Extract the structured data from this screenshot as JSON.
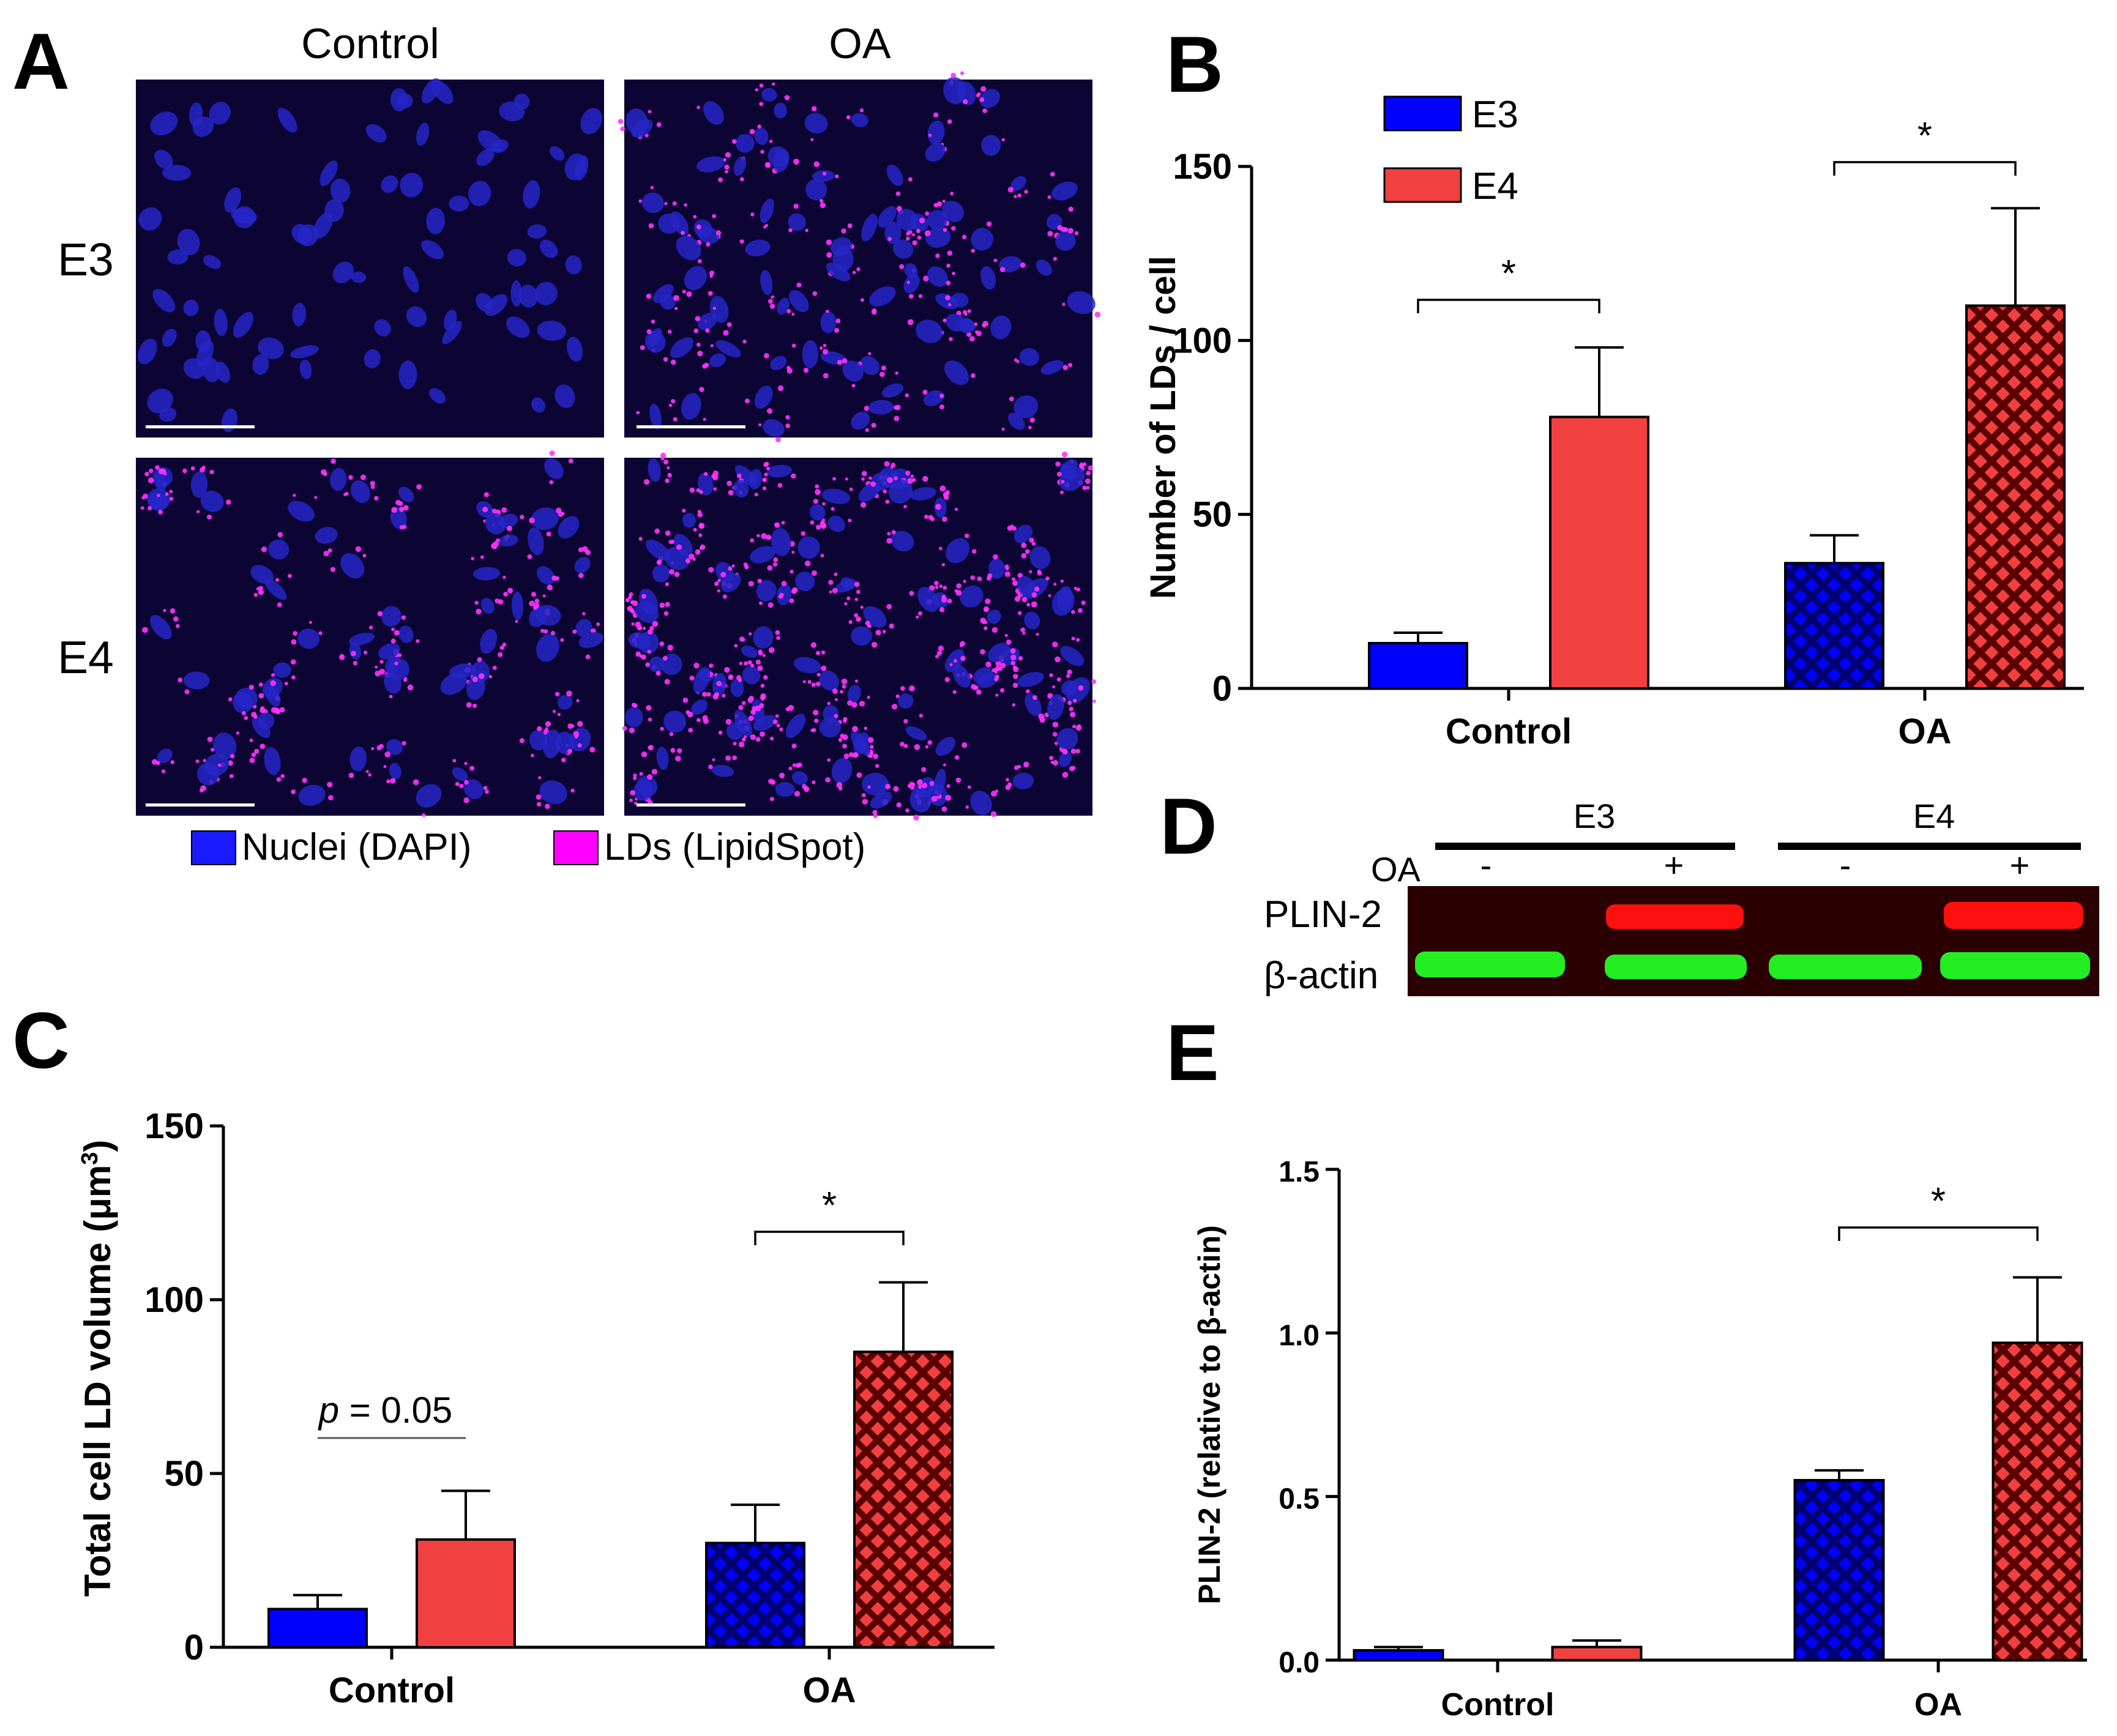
{
  "panel_letters": {
    "a": "A",
    "b": "B",
    "c": "C",
    "d": "D",
    "e": "E"
  },
  "panel_a": {
    "col_labels": [
      "Control",
      "OA"
    ],
    "row_labels": [
      "E3",
      "E4"
    ],
    "legend": [
      {
        "label": "Nuclei (DAPI)",
        "color": "#1a1aff"
      },
      {
        "label": "LDs (LipidSpot)",
        "color": "#ff00ff"
      }
    ]
  },
  "colors": {
    "e3": "#0000ff",
    "e4": "#f04040",
    "pattern_bg_e3": "#00006e",
    "pattern_bg_e4": "#5a0000"
  },
  "chart_data": [
    {
      "id": "B",
      "type": "bar",
      "categories": [
        "Control",
        "OA"
      ],
      "series": [
        {
          "name": "E3",
          "values": [
            13,
            36
          ],
          "errors": [
            3,
            8
          ]
        },
        {
          "name": "E4",
          "values": [
            78,
            110
          ],
          "errors": [
            20,
            28
          ]
        }
      ],
      "ylabel": "Number of LDs / cell",
      "ylim": [
        0,
        150
      ],
      "yticks": [
        0,
        50,
        100,
        150
      ],
      "legend": [
        "E3",
        "E4"
      ],
      "legend_position": "top-left",
      "annotations": [
        "*",
        "*"
      ]
    },
    {
      "id": "C",
      "type": "bar",
      "categories": [
        "Control",
        "OA"
      ],
      "series": [
        {
          "name": "E3",
          "values": [
            11,
            30
          ],
          "errors": [
            4,
            11
          ]
        },
        {
          "name": "E4",
          "values": [
            31,
            85
          ],
          "errors": [
            14,
            20
          ]
        }
      ],
      "ylabel_prefix": "Total cell LD volume (",
      "ylabel_unit": "μm",
      "ylabel_sup": "3",
      "ylabel_suffix": ")",
      "ylim": [
        0,
        150
      ],
      "yticks": [
        0,
        50,
        100,
        150
      ],
      "annotations": [
        {
          "prefix": "p",
          "text": " = 0.05"
        },
        "*"
      ]
    },
    {
      "id": "E",
      "type": "bar",
      "categories": [
        "Control",
        "OA"
      ],
      "series": [
        {
          "name": "E3",
          "values": [
            0.03,
            0.55
          ],
          "errors": [
            0.01,
            0.03
          ]
        },
        {
          "name": "E4",
          "values": [
            0.04,
            0.97
          ],
          "errors": [
            0.02,
            0.2
          ]
        }
      ],
      "ylabel": "PLIN-2 (relative to β-actin)",
      "ylim": [
        0,
        1.5
      ],
      "yticks": [
        "0.0",
        "0.5",
        "1.0",
        "1.5"
      ],
      "annotations": [
        "*"
      ]
    }
  ],
  "panel_d": {
    "groups": [
      "E3",
      "E4"
    ],
    "oa_label": "OA",
    "lane_signs": [
      "-",
      "+",
      "-",
      "+"
    ],
    "bands": [
      {
        "label": "PLIN-2",
        "color": "#ff2a2a"
      },
      {
        "label": "β-actin",
        "color": "#00cc33"
      }
    ]
  }
}
